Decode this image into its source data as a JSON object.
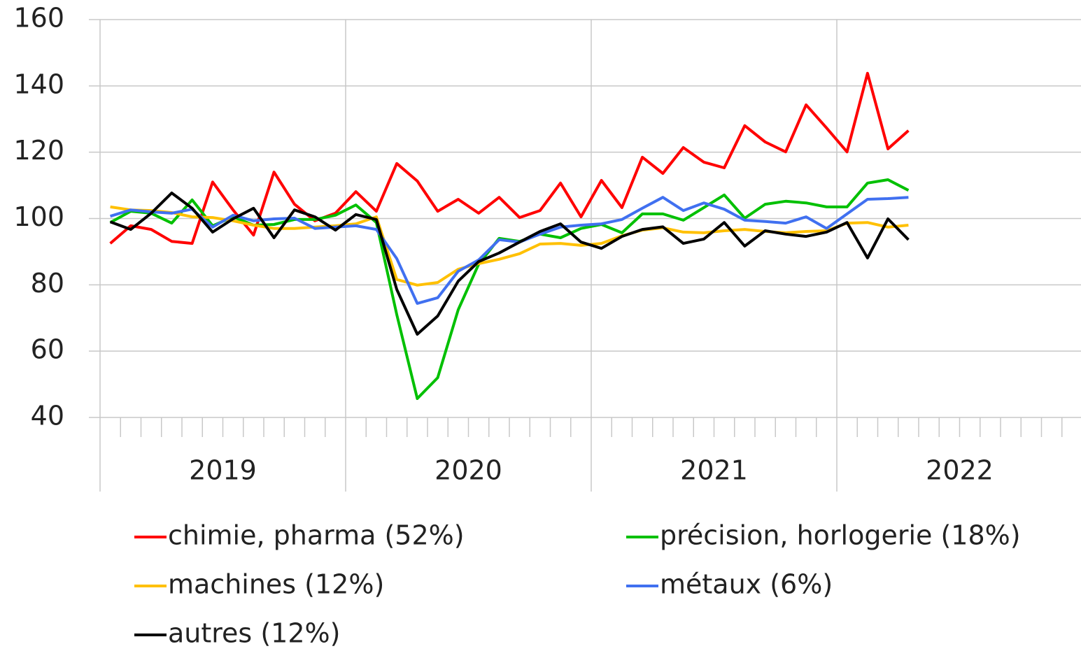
{
  "chart_data": {
    "type": "line",
    "categories": [
      "2019",
      null,
      null,
      null,
      null,
      null,
      null,
      null,
      null,
      null,
      null,
      null,
      "2020",
      null,
      null,
      null,
      null,
      null,
      null,
      null,
      null,
      null,
      null,
      null,
      "2021",
      null,
      null,
      null,
      null,
      null,
      null,
      null,
      null,
      null,
      null,
      null,
      "2022",
      null,
      null,
      null,
      null,
      null,
      null,
      null,
      null,
      null,
      null,
      null
    ],
    "ylim": [
      40,
      160
    ],
    "yticks": [
      40,
      60,
      80,
      100,
      120,
      140,
      160
    ],
    "grid": true,
    "legend": "bottom",
    "series": [
      {
        "name": "chimie, pharma (52%)",
        "color": "#ff0000",
        "values": [
          92.5,
          97.8,
          96.7,
          93.1,
          92.5,
          111,
          102.6,
          95,
          114,
          104.3,
          99.3,
          101.6,
          108.1,
          102.2,
          116.6,
          111.3,
          102.2,
          105.8,
          101.6,
          106.4,
          100.3,
          102.4,
          110.7,
          100.5,
          111.5,
          103.3,
          118.5,
          113.6,
          121.4,
          117,
          115.3,
          128,
          123.1,
          120.1,
          134.3,
          127.3,
          120.1,
          143.8,
          121,
          126.5,
          null,
          null,
          null,
          null,
          null,
          null,
          null,
          null
        ]
      },
      {
        "name": "précision, horlogerie (18%)",
        "color": "#00c000",
        "values": [
          98.8,
          102.2,
          101.6,
          98.6,
          105.6,
          97.8,
          100.5,
          98,
          98.2,
          99.7,
          99.7,
          101,
          104.1,
          98.8,
          71,
          45.7,
          52,
          72.5,
          86.2,
          94,
          93.1,
          95.3,
          94.2,
          97,
          98.2,
          95.7,
          101.4,
          101.4,
          99.5,
          103.3,
          107.1,
          100.1,
          104.3,
          105.2,
          104.7,
          103.5,
          103.5,
          110.7,
          111.7,
          108.5,
          null,
          null,
          null,
          null,
          null,
          null,
          null,
          null
        ]
      },
      {
        "name": "machines (12%)",
        "color": "#ffc000",
        "values": [
          103.5,
          102.6,
          102.4,
          101.8,
          100.5,
          100.3,
          99.3,
          98,
          97,
          97,
          97.4,
          97.8,
          98.4,
          100.5,
          81.6,
          79.9,
          80.7,
          84.7,
          86.4,
          87.7,
          89.4,
          92.3,
          92.5,
          91.9,
          92.5,
          94.8,
          96.5,
          97.2,
          95.9,
          95.7,
          96.3,
          96.7,
          96.1,
          95.7,
          96.1,
          96.3,
          98.6,
          98.8,
          97.4,
          98,
          null,
          null,
          null,
          null,
          null,
          null,
          null,
          null
        ]
      },
      {
        "name": "métaux (6%)",
        "color": "#4070f0",
        "values": [
          100.7,
          102.6,
          102,
          101.6,
          102.8,
          97.4,
          101,
          99.3,
          99.9,
          100.1,
          97,
          97.4,
          97.8,
          96.7,
          87.9,
          74.4,
          76.1,
          84.1,
          87.5,
          93.6,
          92.9,
          95.3,
          97.4,
          98,
          98.4,
          99.7,
          103.1,
          106.4,
          102.4,
          104.7,
          102.8,
          99.5,
          99.1,
          98.6,
          100.5,
          97,
          101.4,
          105.8,
          106,
          106.4,
          null,
          null,
          null,
          null,
          null,
          null,
          null,
          null
        ]
      },
      {
        "name": "autres (12%)",
        "color": "#000000",
        "values": [
          99,
          96.7,
          101.6,
          107.7,
          103.1,
          95.9,
          99.9,
          103.1,
          94.2,
          102.6,
          100.5,
          96.5,
          101.2,
          99.7,
          78.6,
          65.1,
          70.6,
          81.1,
          87,
          89.6,
          92.9,
          96.1,
          98.4,
          92.9,
          91,
          94.6,
          96.7,
          97.5,
          92.5,
          93.8,
          98.8,
          91.7,
          96.3,
          95.3,
          94.6,
          95.9,
          98.8,
          88.1,
          99.9,
          93.6,
          null,
          null,
          null,
          null,
          null,
          null,
          null,
          null
        ]
      }
    ]
  }
}
